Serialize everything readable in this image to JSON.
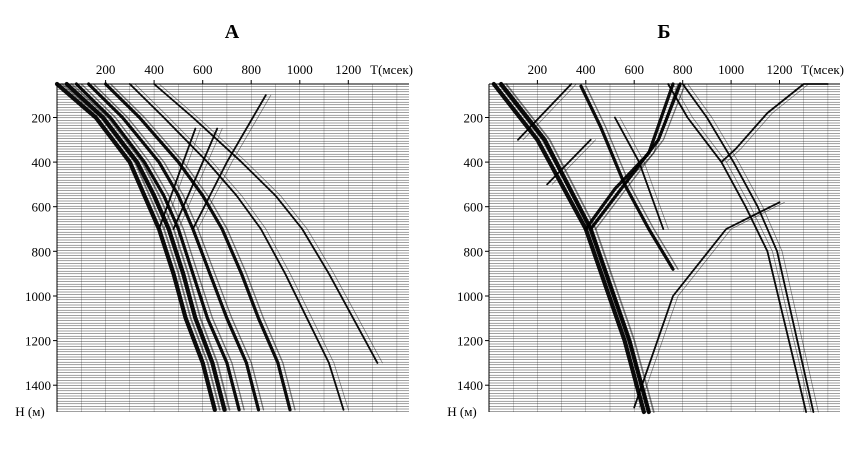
{
  "chart_data": [
    {
      "type": "line",
      "panel": "А",
      "title": "А",
      "xlabel": "T(мсек)",
      "ylabel": "H (м)",
      "x_ticks": [
        200,
        400,
        600,
        800,
        1000,
        1200
      ],
      "y_ticks": [
        200,
        400,
        600,
        800,
        1000,
        1200,
        1400
      ],
      "xlim": [
        0,
        1450
      ],
      "ylim": [
        50,
        1520
      ],
      "y_inverted": true,
      "grid": "horizontal trace lines",
      "series": [
        {
          "x": [
            0,
            160,
            300,
            360,
            420,
            480,
            530,
            600,
            650
          ],
          "y": [
            50,
            200,
            400,
            550,
            700,
            900,
            1100,
            1300,
            1510
          ]
        },
        {
          "x": [
            40,
            190,
            330,
            400,
            460,
            520,
            570,
            640,
            690
          ],
          "y": [
            50,
            200,
            400,
            550,
            700,
            900,
            1100,
            1300,
            1510
          ]
        },
        {
          "x": [
            80,
            220,
            360,
            440,
            500,
            560,
            620,
            700,
            750
          ],
          "y": [
            50,
            200,
            400,
            550,
            700,
            900,
            1100,
            1300,
            1510
          ]
        },
        {
          "x": [
            130,
            270,
            420,
            500,
            560,
            630,
            700,
            780,
            830
          ],
          "y": [
            50,
            200,
            400,
            550,
            700,
            900,
            1100,
            1300,
            1510
          ]
        },
        {
          "x": [
            200,
            340,
            500,
            600,
            680,
            760,
            830,
            910,
            960
          ],
          "y": [
            50,
            200,
            400,
            550,
            700,
            900,
            1100,
            1300,
            1510
          ]
        },
        {
          "x": [
            300,
            440,
            620,
            740,
            840,
            940,
            1030,
            1120,
            1180
          ],
          "y": [
            50,
            200,
            400,
            550,
            700,
            900,
            1100,
            1300,
            1510
          ]
        },
        {
          "x": [
            400,
            560,
            760,
            900,
            1010,
            1120,
            1220,
            1320
          ],
          "y": [
            50,
            200,
            400,
            550,
            700,
            900,
            1100,
            1300
          ]
        },
        {
          "x": [
            420,
            470,
            520,
            570
          ],
          "y": [
            700,
            550,
            400,
            250
          ]
        },
        {
          "x": [
            480,
            540,
            600,
            660
          ],
          "y": [
            700,
            550,
            400,
            250
          ]
        },
        {
          "x": [
            560,
            630,
            700,
            780,
            860
          ],
          "y": [
            700,
            550,
            400,
            250,
            100
          ]
        }
      ]
    },
    {
      "type": "line",
      "panel": "Б",
      "title": "Б",
      "xlabel": "T(мсек)",
      "ylabel": "H (м)",
      "x_ticks": [
        200,
        400,
        600,
        800,
        1000,
        1200
      ],
      "y_ticks": [
        200,
        400,
        600,
        800,
        1000,
        1200,
        1400
      ],
      "xlim": [
        0,
        1450
      ],
      "ylim": [
        50,
        1520
      ],
      "y_inverted": true,
      "grid": "horizontal trace lines",
      "series": [
        {
          "x": [
            20,
            200,
            400,
            560,
            640
          ],
          "y": [
            50,
            300,
            700,
            1200,
            1520
          ]
        },
        {
          "x": [
            50,
            230,
            420,
            580,
            660
          ],
          "y": [
            50,
            300,
            700,
            1200,
            1520
          ]
        },
        {
          "x": [
            400,
            520,
            660,
            760
          ],
          "y": [
            700,
            520,
            360,
            50
          ]
        },
        {
          "x": [
            420,
            560,
            700,
            790
          ],
          "y": [
            700,
            500,
            300,
            50
          ]
        },
        {
          "x": [
            380,
            460,
            560,
            660,
            760
          ],
          "y": [
            60,
            240,
            500,
            700,
            880
          ]
        },
        {
          "x": [
            740,
            820,
            960,
            1060,
            1150,
            1310
          ],
          "y": [
            50,
            200,
            400,
            600,
            800,
            1520
          ]
        },
        {
          "x": [
            800,
            900,
            1010,
            1110,
            1190,
            1340
          ],
          "y": [
            50,
            200,
            400,
            600,
            800,
            1520
          ]
        },
        {
          "x": [
            120,
            340
          ],
          "y": [
            300,
            50
          ]
        },
        {
          "x": [
            240,
            420
          ],
          "y": [
            500,
            300
          ]
        },
        {
          "x": [
            960,
            1020,
            1150,
            1300,
            1400
          ],
          "y": [
            400,
            340,
            180,
            50,
            50
          ]
        },
        {
          "x": [
            600,
            760,
            980,
            1200
          ],
          "y": [
            1500,
            1000,
            700,
            580
          ]
        },
        {
          "x": [
            520,
            620,
            720
          ],
          "y": [
            200,
            400,
            700
          ]
        }
      ]
    }
  ]
}
